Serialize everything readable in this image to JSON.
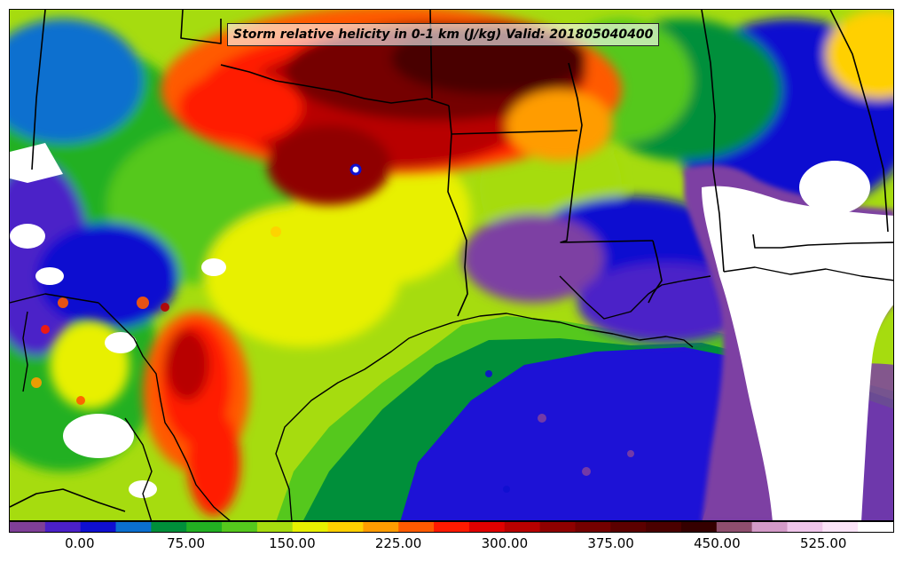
{
  "title": "Storm relative helicity in 0-1 km (J/kg) Valid: 201805040400",
  "colors": {
    "levels": [
      "#7f3f98",
      "#4b20c8",
      "#0f0fd0",
      "#0b6fcf",
      "#008f3a",
      "#22b022",
      "#55c81d",
      "#a6dc0f",
      "#e8f000",
      "#ffd000",
      "#ff9c00",
      "#ff5a00",
      "#ff1a00",
      "#e00000",
      "#b80000",
      "#8f0000",
      "#740000",
      "#5c0000",
      "#4a0000",
      "#350000",
      "#8e4e6e",
      "#d39ac8",
      "#efc5ea",
      "#fbe4f8",
      "#ffffff"
    ],
    "water_gulf": "#1d12d6",
    "water_edge": "#7d3fa3",
    "land_base": "#dcec1a",
    "border_line": "#000000"
  },
  "colorbar": {
    "range": [
      -50,
      575
    ],
    "tick_labels": [
      "0.00",
      "75.00",
      "150.00",
      "225.00",
      "300.00",
      "375.00",
      "450.00",
      "525.00"
    ],
    "tick_values": [
      0,
      75,
      150,
      225,
      300,
      375,
      450,
      525
    ]
  }
}
